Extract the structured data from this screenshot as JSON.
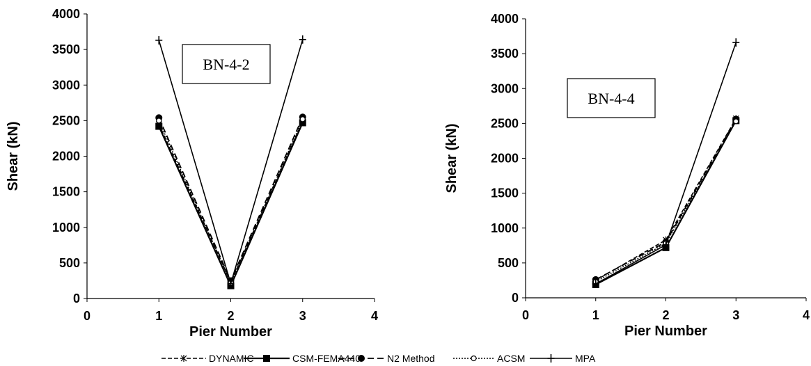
{
  "chart_data": [
    {
      "type": "line",
      "annotation": "BN-4-2",
      "xlabel": "Pier Number",
      "ylabel": "Shear (kN)",
      "xlim": [
        0,
        4
      ],
      "ylim": [
        0,
        4000
      ],
      "x_ticks": [
        "0",
        "1",
        "2",
        "3",
        "4"
      ],
      "y_ticks": [
        "0",
        "500",
        "1000",
        "1500",
        "2000",
        "2500",
        "3000",
        "3500",
        "4000"
      ],
      "grid": false,
      "x": [
        1,
        2,
        3
      ],
      "series": [
        {
          "name": "DYNAMIC",
          "values": [
            2450,
            230,
            2490
          ]
        },
        {
          "name": "CSM-FEMA440",
          "values": [
            2420,
            180,
            2470
          ]
        },
        {
          "name": "N2 Method",
          "values": [
            2540,
            250,
            2550
          ]
        },
        {
          "name": "ACSM",
          "values": [
            2500,
            220,
            2520
          ]
        },
        {
          "name": "MPA",
          "values": [
            3630,
            210,
            3640
          ]
        }
      ]
    },
    {
      "type": "line",
      "annotation": "BN-4-4",
      "xlabel": "Pier Number",
      "ylabel": "Shear (kN)",
      "xlim": [
        0,
        4
      ],
      "ylim": [
        0,
        4000
      ],
      "x_ticks": [
        "0",
        "1",
        "2",
        "3",
        "4"
      ],
      "y_ticks": [
        "0",
        "500",
        "1000",
        "1500",
        "2000",
        "2500",
        "3000",
        "3500",
        "4000"
      ],
      "grid": false,
      "x": [
        1,
        2,
        3
      ],
      "series": [
        {
          "name": "DYNAMIC",
          "values": [
            250,
            830,
            2570
          ]
        },
        {
          "name": "CSM-FEMA440",
          "values": [
            190,
            720,
            2540
          ]
        },
        {
          "name": "N2 Method",
          "values": [
            260,
            800,
            2560
          ]
        },
        {
          "name": "ACSM",
          "values": [
            230,
            780,
            2530
          ]
        },
        {
          "name": "MPA",
          "values": [
            200,
            760,
            3660
          ]
        }
      ]
    }
  ],
  "legend": {
    "position": "bottom",
    "items": [
      "DYNAMIC",
      "CSM-FEMA440",
      "N2 Method",
      "ACSM",
      "MPA"
    ]
  }
}
